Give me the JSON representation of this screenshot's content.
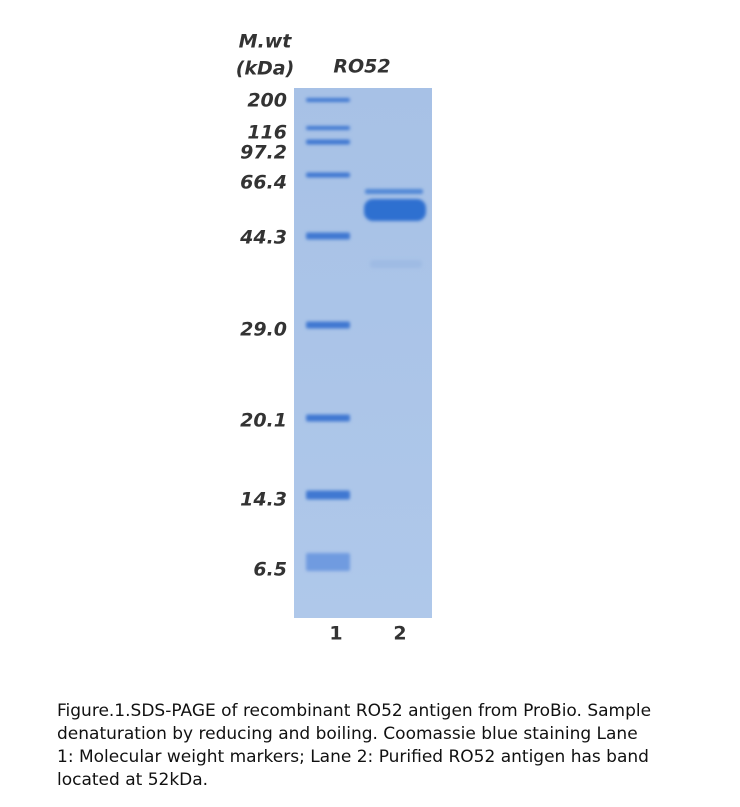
{
  "header": {
    "mwt": "M.wt",
    "unit": "(kDa)",
    "sample": "RO52"
  },
  "markers": [
    "200",
    "116",
    "97.2",
    "66.4",
    "44.3",
    "29.0",
    "20.1",
    "14.3",
    "6.5"
  ],
  "lanes": [
    "1",
    "2"
  ],
  "caption": [
    "Figure.1.SDS-PAGE of recombinant RO52 antigen from ProBio. Sample",
    "denaturation by reducing and boiling. Coomassie blue staining Lane",
    "1: Molecular weight markers; Lane 2: Purified RO52 antigen has band",
    "located at 52kDa."
  ]
}
